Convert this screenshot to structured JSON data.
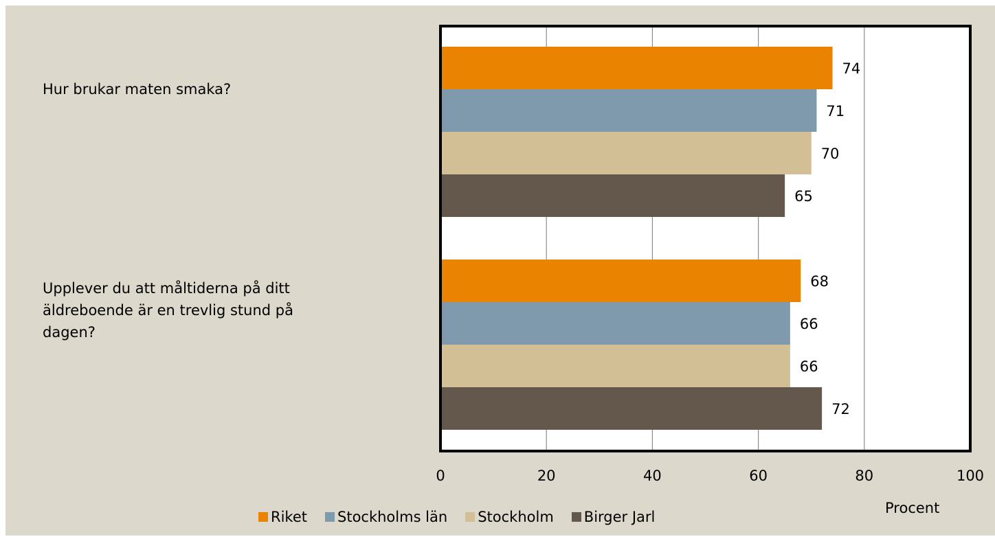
{
  "chart_data": {
    "type": "bar",
    "orientation": "horizontal",
    "categories": [
      "Hur brukar maten smaka?",
      "Upplever du att måltiderna på ditt\näldreboende är en trevlig stund på\ndagen?"
    ],
    "series": [
      {
        "name": "Riket",
        "color": "#e98300",
        "values": [
          74,
          68
        ]
      },
      {
        "name": "Stockholms län",
        "color": "#7e9aac",
        "values": [
          71,
          66
        ]
      },
      {
        "name": "Stockholm",
        "color": "#d3bf96",
        "values": [
          70,
          66
        ]
      },
      {
        "name": "Birger Jarl",
        "color": "#64574b",
        "values": [
          65,
          72
        ]
      }
    ],
    "xlim": [
      0,
      100
    ],
    "xticks": [
      "0",
      "20",
      "40",
      "60",
      "80",
      "100"
    ],
    "xlabel": "Procent",
    "ylabel": "",
    "grid": true,
    "legend": "bottom",
    "data_labels": true
  }
}
